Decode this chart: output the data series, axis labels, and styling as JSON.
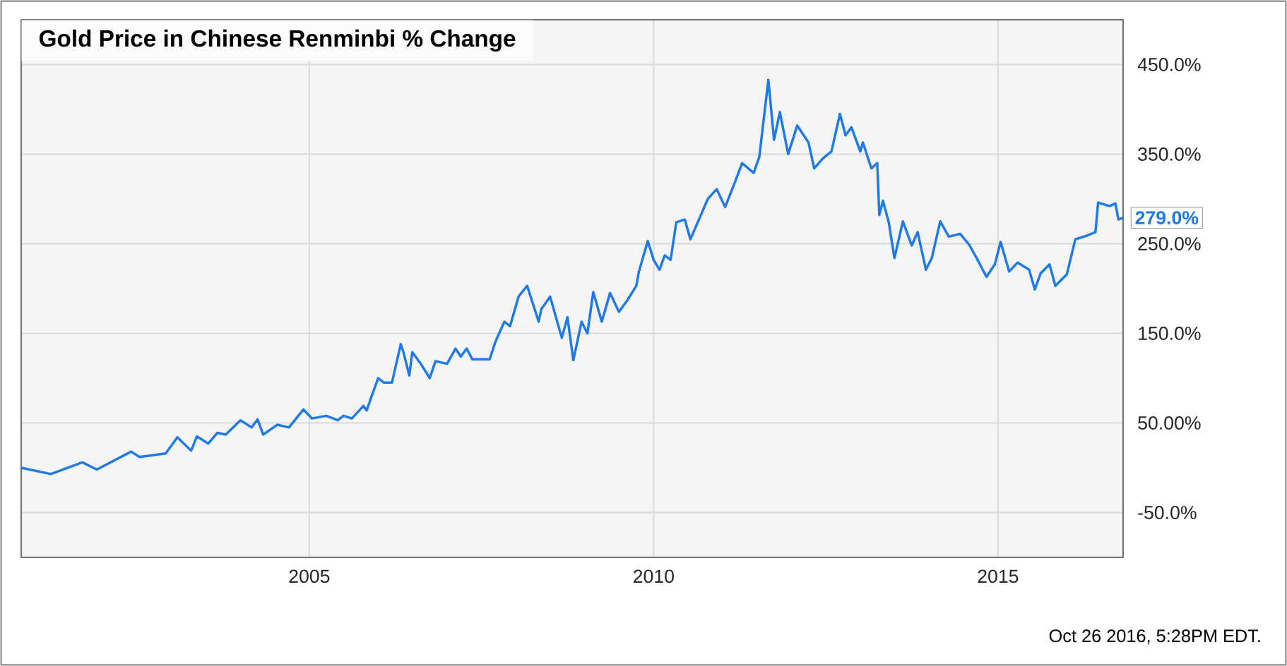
{
  "chart_data": {
    "type": "line",
    "title": "Gold Price in Chinese Renminbi % Change",
    "x": [
      "2000-10-26",
      "2001-04-01",
      "2001-09-15",
      "2001-12-01",
      "2002-06-01",
      "2002-07-15",
      "2002-12-01",
      "2003-02-01",
      "2003-04-15",
      "2003-05-15",
      "2003-07-15",
      "2003-09-01",
      "2003-10-15",
      "2004-01-01",
      "2004-03-01",
      "2004-04-01",
      "2004-05-01",
      "2004-07-15",
      "2004-09-15",
      "2004-12-01",
      "2005-01-15",
      "2005-04-01",
      "2005-06-01",
      "2005-07-01",
      "2005-08-15",
      "2005-10-15",
      "2005-11-01",
      "2005-12-01",
      "2006-01-01",
      "2006-02-01",
      "2006-03-15",
      "2006-05-01",
      "2006-05-15",
      "2006-06-15",
      "2006-07-01",
      "2006-08-15",
      "2006-10-01",
      "2006-11-01",
      "2007-01-01",
      "2007-02-15",
      "2007-03-15",
      "2007-04-15",
      "2007-05-15",
      "2007-08-15",
      "2007-09-15",
      "2007-11-01",
      "2007-12-01",
      "2008-01-15",
      "2008-03-01",
      "2008-05-01",
      "2008-05-15",
      "2008-07-01",
      "2008-09-01",
      "2008-10-01",
      "2008-11-01",
      "2008-12-15",
      "2009-01-15",
      "2009-02-15",
      "2009-04-01",
      "2009-05-15",
      "2009-07-01",
      "2009-08-15",
      "2009-10-01",
      "2009-10-15",
      "2009-12-01",
      "2010-01-01",
      "2010-02-01",
      "2010-03-01",
      "2010-04-01",
      "2010-05-01",
      "2010-06-15",
      "2010-07-15",
      "2010-10-15",
      "2010-12-01",
      "2011-01-15",
      "2011-03-01",
      "2011-04-15",
      "2011-06-15",
      "2011-07-15",
      "2011-09-01",
      "2011-10-01",
      "2011-11-01",
      "2011-12-15",
      "2012-02-01",
      "2012-04-01",
      "2012-05-01",
      "2012-06-15",
      "2012-08-01",
      "2012-09-15",
      "2012-10-15",
      "2012-11-15",
      "2013-01-01",
      "2013-01-15",
      "2013-03-01",
      "2013-04-01",
      "2013-04-12",
      "2013-05-01",
      "2013-06-01",
      "2013-07-01",
      "2013-08-15",
      "2013-10-01",
      "2013-11-01",
      "2013-12-15",
      "2014-01-15",
      "2014-03-01",
      "2014-04-15",
      "2014-06-15",
      "2014-08-01",
      "2014-09-15",
      "2014-11-01",
      "2014-12-15",
      "2015-01-15",
      "2015-03-01",
      "2015-04-15",
      "2015-06-15",
      "2015-07-15",
      "2015-08-15",
      "2015-10-01",
      "2015-11-01",
      "2016-01-01",
      "2016-02-15",
      "2016-04-15",
      "2016-06-01",
      "2016-06-15",
      "2016-08-15",
      "2016-09-15",
      "2016-10-01",
      "2016-10-26"
    ],
    "values": [
      0,
      -7,
      6,
      -2,
      18,
      12,
      16,
      34,
      19,
      35,
      27,
      39,
      37,
      53,
      45,
      54,
      37,
      48,
      45,
      65,
      55,
      58,
      53,
      58,
      55,
      69,
      64,
      82,
      100,
      95,
      95,
      138,
      129,
      103,
      129,
      116,
      100,
      119,
      116,
      133,
      124,
      133,
      121,
      121,
      141,
      163,
      158,
      191,
      203,
      163,
      177,
      191,
      145,
      168,
      120,
      163,
      150,
      196,
      163,
      195,
      174,
      187,
      203,
      219,
      253,
      232,
      221,
      237,
      232,
      274,
      277,
      255,
      300,
      311,
      291,
      315,
      340,
      329,
      347,
      433,
      366,
      397,
      350,
      382,
      363,
      334,
      345,
      353,
      395,
      371,
      380,
      353,
      363,
      334,
      340,
      282,
      298,
      274,
      234,
      275,
      248,
      263,
      221,
      234,
      275,
      258,
      261,
      249,
      232,
      213,
      227,
      252,
      219,
      229,
      221,
      199,
      217,
      227,
      203,
      216,
      255,
      259,
      263,
      296,
      292,
      295,
      277,
      279
    ],
    "color": "#1f7ae6",
    "marker": "none",
    "line_style": "solid",
    "grid": true,
    "xlim": [
      "2000-10-26",
      "2016-10-26"
    ],
    "xticks": [
      "2005",
      "2010",
      "2015"
    ],
    "ylim": [
      -100,
      500
    ],
    "yticks": [
      {
        "value": -50,
        "label": "-50.0%"
      },
      {
        "value": 50,
        "label": "50.00%"
      },
      {
        "value": 150,
        "label": "150.0%"
      },
      {
        "value": 250,
        "label": "250.0%"
      },
      {
        "value": 350,
        "label": "350.0%"
      },
      {
        "value": 450,
        "label": "450.0%"
      }
    ],
    "annotations": [
      {
        "text": "279.0%",
        "x": "2016-10-26",
        "y": 279
      },
      "Oct 26 2016, 5:28PM EDT."
    ]
  }
}
